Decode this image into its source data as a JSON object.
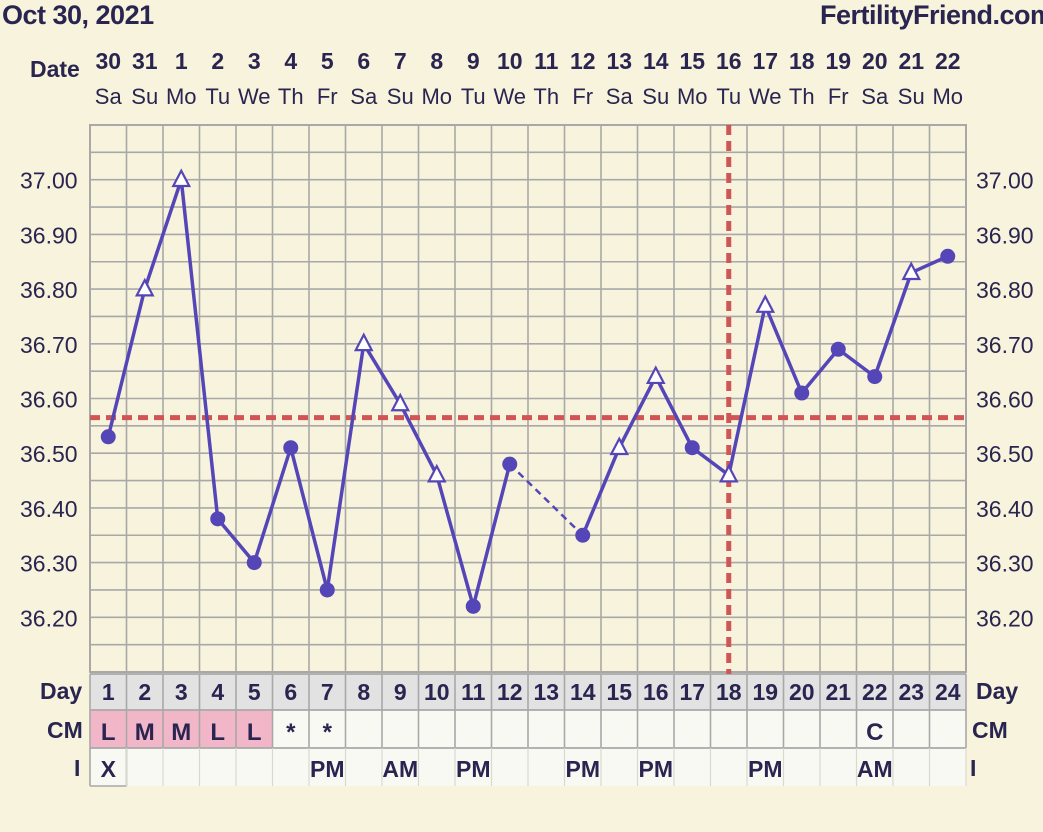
{
  "header": {
    "date": "Oct 30, 2021",
    "site": "FertilityFriend.com"
  },
  "colors": {
    "background": "#f7f3dc",
    "grid": "#a8a8a8",
    "line": "#5546b8",
    "coverline": "#d05555",
    "cm_highlight": "#f2b6c9",
    "text": "#2a2550"
  },
  "labels": {
    "date": "Date",
    "day": "Day",
    "cm": "CM",
    "i": "I"
  },
  "dates": [
    "30",
    "31",
    "1",
    "2",
    "3",
    "4",
    "5",
    "6",
    "7",
    "8",
    "9",
    "10",
    "11",
    "12",
    "13",
    "14",
    "15",
    "16",
    "17",
    "18",
    "19",
    "20",
    "21",
    "22"
  ],
  "weekdays": [
    "Sa",
    "Su",
    "Mo",
    "Tu",
    "We",
    "Th",
    "Fr",
    "Sa",
    "Su",
    "Mo",
    "Tu",
    "We",
    "Th",
    "Fr",
    "Sa",
    "Su",
    "Mo",
    "Tu",
    "We",
    "Th",
    "Fr",
    "Sa",
    "Su",
    "Mo"
  ],
  "chart_data": {
    "type": "line",
    "x": [
      1,
      2,
      3,
      4,
      5,
      6,
      7,
      8,
      9,
      10,
      11,
      12,
      13,
      14,
      15,
      16,
      17,
      18,
      19,
      20,
      21,
      22,
      23,
      24
    ],
    "series": [
      {
        "values": [
          36.53,
          36.8,
          37.0,
          36.38,
          36.3,
          36.51,
          36.25,
          36.7,
          36.59,
          36.46,
          36.22,
          36.48,
          null,
          36.35,
          36.51,
          36.64,
          36.51,
          36.46,
          36.77,
          36.61,
          36.69,
          36.64,
          36.83,
          36.86
        ],
        "markers": [
          "circle",
          "triangle",
          "triangle",
          "circle",
          "circle",
          "circle",
          "circle",
          "triangle",
          "triangle",
          "triangle",
          "circle",
          "circle",
          null,
          "circle",
          "triangle",
          "triangle",
          "circle",
          "triangle",
          "triangle",
          "circle",
          "circle",
          "circle",
          "triangle",
          "circle"
        ]
      }
    ],
    "dashed_segment": [
      12,
      14
    ],
    "coverline": 36.565,
    "ovulation_day": 18,
    "yticks": [
      "37.00",
      "36.90",
      "36.80",
      "36.70",
      "36.60",
      "36.50",
      "36.40",
      "36.30",
      "36.20"
    ],
    "ylim": [
      36.1,
      37.1
    ],
    "xlabel": "Day",
    "grid": true
  },
  "cm": [
    "L",
    "M",
    "M",
    "L",
    "L",
    "*",
    "*",
    "",
    "",
    "",
    "",
    "",
    "",
    "",
    "",
    "",
    "",
    "",
    "",
    "",
    "",
    "C",
    "",
    ""
  ],
  "intercourse": [
    "X",
    "",
    "",
    "",
    "",
    "",
    "PM",
    "",
    "AM",
    "",
    "PM",
    "",
    "",
    "PM",
    "",
    "PM",
    "",
    "",
    "PM",
    "",
    "",
    "AM",
    "",
    ""
  ]
}
